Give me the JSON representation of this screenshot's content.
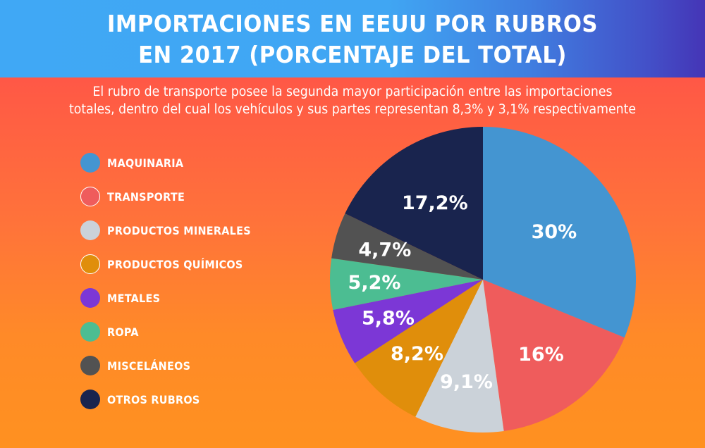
{
  "header": {
    "title_line1": "IMPORTACIONES EN EEUU POR RUBROS",
    "title_line2": "EN 2017 (PORCENTAJE DEL TOTAL)"
  },
  "subtitle": {
    "line1": "El rubro de transporte posee la segunda mayor participación entre las importaciones",
    "line2": "totales, dentro del cual los vehículos y sus partes representan 8,3% y 3,1% respectivamente"
  },
  "legend": {
    "items": [
      {
        "label": "MAQUINARIA",
        "color": "#4495D1",
        "outlined": false
      },
      {
        "label": "TRANSPORTE",
        "color": "#EF5C5C",
        "outlined": true
      },
      {
        "label": "PRODUCTOS MINERALES",
        "color": "#CBD2D9",
        "outlined": false
      },
      {
        "label": "PRODUCTOS QUÍMICOS",
        "color": "#E08E0B",
        "outlined": true
      },
      {
        "label": "METALES",
        "color": "#7C37D6",
        "outlined": false
      },
      {
        "label": "ROPA",
        "color": "#4CBD92",
        "outlined": false
      },
      {
        "label": "MISCELÁNEOS",
        "color": "#525252",
        "outlined": false
      },
      {
        "label": "OTROS RUBROS",
        "color": "#19244E",
        "outlined": false
      }
    ]
  },
  "chart_data": {
    "type": "pie",
    "title": "IMPORTACIONES EN EEUU POR RUBROS EN 2017 (PORCENTAJE DEL TOTAL)",
    "subtitle": "El rubro de transporte posee la segunda mayor participación entre las importaciones totales, dentro del cual los vehículos y sus partes representan 8,3% y 3,1% respectivamente",
    "legend_position": "left",
    "start_angle": "12 o'clock",
    "direction": "clockwise",
    "categories": [
      "MAQUINARIA",
      "TRANSPORTE",
      "PRODUCTOS MINERALES",
      "PRODUCTOS QUÍMICOS",
      "METALES",
      "ROPA",
      "MISCELÁNEOS",
      "OTROS RUBROS"
    ],
    "values": [
      30,
      16,
      9.1,
      8.2,
      5.8,
      5.2,
      4.7,
      17.2
    ],
    "data_labels": [
      "30%",
      "16%",
      "9,1%",
      "8,2%",
      "5,8%",
      "5,2%",
      "4,7%",
      "17,2%"
    ],
    "colors": [
      "#4495D1",
      "#EF5C5C",
      "#CBD2D9",
      "#E08E0B",
      "#7C37D6",
      "#4CBD92",
      "#525252",
      "#19244E"
    ]
  }
}
